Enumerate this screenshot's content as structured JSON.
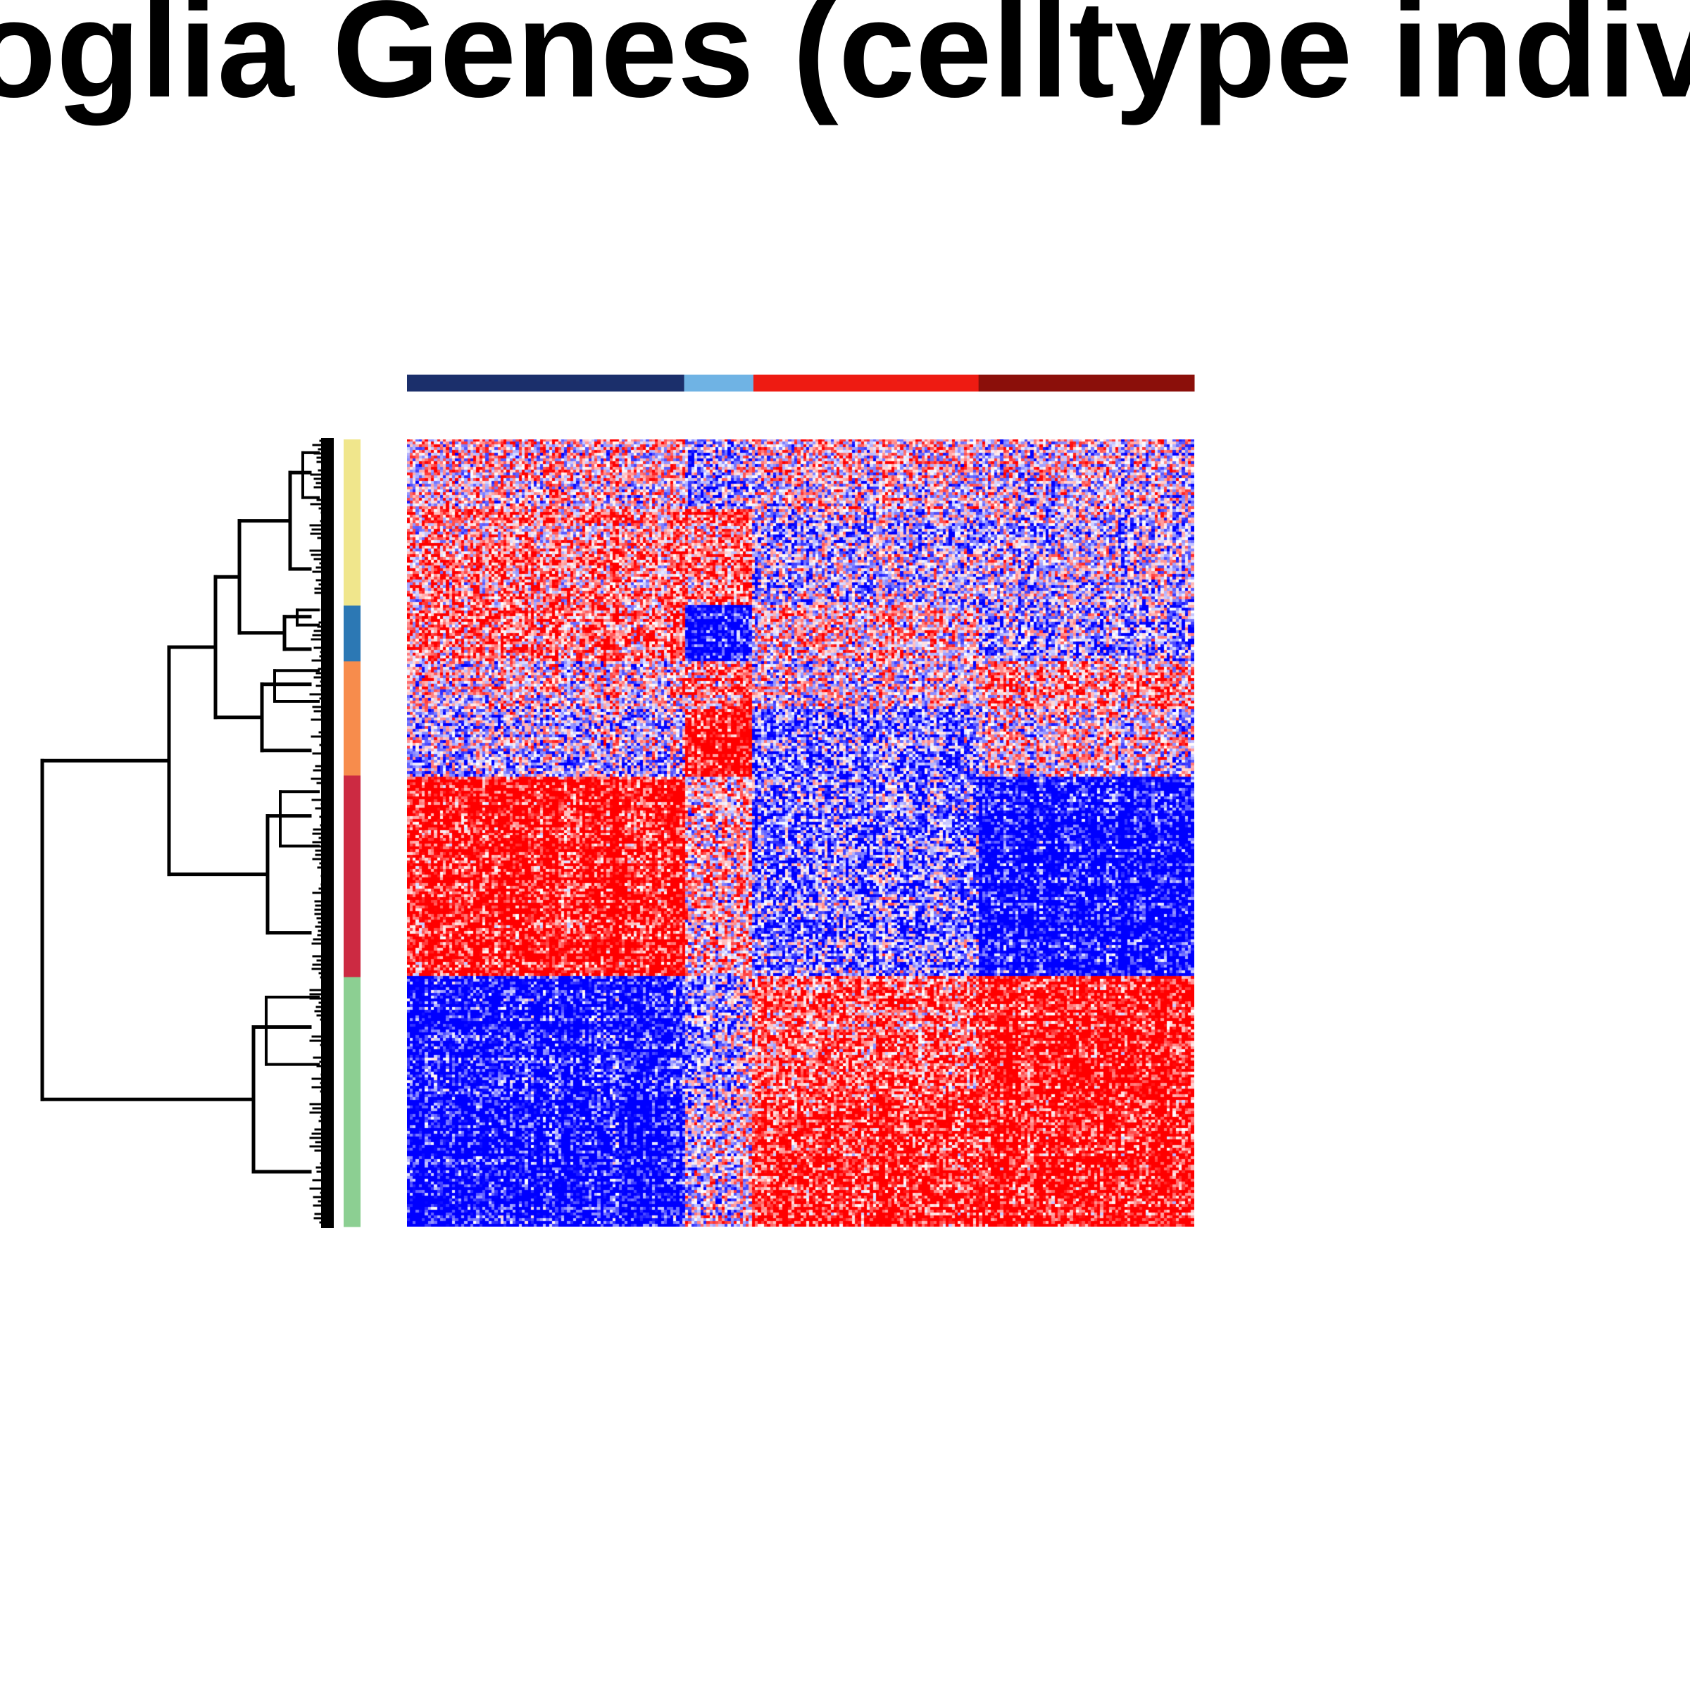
{
  "header": {
    "title": "oglia Genes (celltype indivi"
  },
  "chart_data": {
    "type": "heatmap",
    "title": "oglia Genes (celltype indivi",
    "xlabel": "",
    "ylabel": "",
    "grid": false,
    "colors": {
      "low": "#0000ff",
      "mid": "#ffffff",
      "high": "#ff0000",
      "dendrogram": "#000000"
    },
    "column_annotation": {
      "groups": [
        {
          "color": "#1b2f6b",
          "fraction": 0.352
        },
        {
          "color": "#6fb3e4",
          "fraction": 0.088
        },
        {
          "color": "#ee1b12",
          "fraction": 0.286
        },
        {
          "color": "#8b0f0a",
          "fraction": 0.274
        }
      ]
    },
    "row_clusters": [
      {
        "color": "#f0e68c",
        "fraction": 0.211
      },
      {
        "color": "#2c78b4",
        "fraction": 0.071
      },
      {
        "color": "#f78c4c",
        "fraction": 0.145
      },
      {
        "color": "#cc2a42",
        "fraction": 0.256
      },
      {
        "color": "#8ccf92",
        "fraction": 0.317
      }
    ],
    "column_blocks": [
      0.352,
      0.088,
      0.286,
      0.274
    ],
    "row_blocks": [
      0.09,
      0.121,
      0.071,
      0.06,
      0.085,
      0.256,
      0.152,
      0.165
    ],
    "block_means": [
      [
        0.15,
        -0.3,
        0.05,
        -0.05
      ],
      [
        0.4,
        0.45,
        -0.25,
        -0.2
      ],
      [
        0.55,
        -1.0,
        0.2,
        -0.25
      ],
      [
        0.1,
        0.45,
        0.0,
        0.4
      ],
      [
        -0.15,
        1.0,
        -0.5,
        0.05
      ],
      [
        1.0,
        0.2,
        -0.45,
        -1.0
      ],
      [
        -0.9,
        -0.3,
        0.55,
        0.95
      ],
      [
        -1.0,
        -0.05,
        0.8,
        0.9
      ]
    ]
  }
}
